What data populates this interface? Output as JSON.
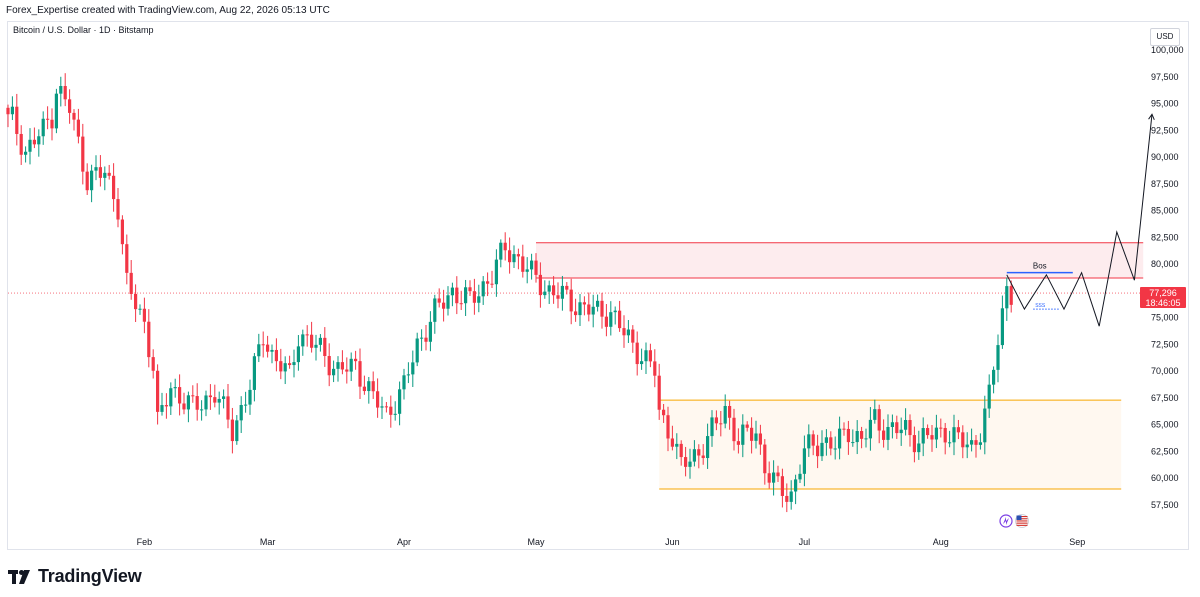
{
  "header": {
    "attribution": "Forex_Expertise created with TradingView.com, Aug 22, 2026 05:13 UTC"
  },
  "symbol": {
    "title": "Bitcoin / U.S. Dollar · 1D · Bitstamp"
  },
  "axis": {
    "currency": "USD"
  },
  "price_label": {
    "price": "77,296",
    "countdown": "18:46:05"
  },
  "annotations": {
    "bos": "Bos",
    "sss": "SSS"
  },
  "footer": {
    "brand": "TradingView"
  },
  "colors": {
    "up": "#089981",
    "down": "#f23645",
    "resistance_zone_fill": "#fdecee",
    "resistance_zone_line": "#f23645",
    "support_zone_fill": "#fff8f0",
    "support_zone_line": "#f7a600",
    "bos_line": "#2962ff",
    "projection": "#131722"
  },
  "chart_data": {
    "type": "candlestick",
    "title": "Bitcoin / U.S. Dollar · 1D · Bitstamp",
    "ylabel": "USD",
    "ylim": [
      56000,
      101200
    ],
    "y_ticks": [
      57500,
      60000,
      62500,
      65000,
      67500,
      70000,
      72500,
      75000,
      77500,
      80000,
      82500,
      85000,
      87500,
      90000,
      92500,
      95000,
      97500,
      100000
    ],
    "y_tick_labels": [
      "57,500",
      "60,000",
      "62,500",
      "65,000",
      "67,500",
      "70,000",
      "72,500",
      "75,000",
      "77,500",
      "80,000",
      "82,500",
      "85,000",
      "87,500",
      "90,000",
      "92,500",
      "95,000",
      "97,500",
      "100,000"
    ],
    "x_tick_labels": [
      "Feb",
      "Mar",
      "Apr",
      "May",
      "Jun",
      "Jul",
      "Aug",
      "Sep"
    ],
    "x_tick_days": [
      31,
      59,
      90,
      120,
      151,
      181,
      212,
      243
    ],
    "last_price": 77296,
    "grid": false,
    "anchors": [
      [
        1,
        93500
      ],
      [
        4,
        90500
      ],
      [
        8,
        92500
      ],
      [
        10,
        94000
      ],
      [
        11,
        96500
      ],
      [
        14,
        94500
      ],
      [
        18,
        88000
      ],
      [
        22,
        88500
      ],
      [
        25,
        85500
      ],
      [
        27,
        78000
      ],
      [
        31,
        74500
      ],
      [
        33,
        70500
      ],
      [
        34,
        65000
      ],
      [
        37,
        68500
      ],
      [
        42,
        66500
      ],
      [
        47,
        68000
      ],
      [
        51,
        64500
      ],
      [
        55,
        68500
      ],
      [
        58,
        73500
      ],
      [
        60,
        71500
      ],
      [
        64,
        69500
      ],
      [
        66,
        73500
      ],
      [
        71,
        72000
      ],
      [
        75,
        70000
      ],
      [
        79,
        70500
      ],
      [
        83,
        67500
      ],
      [
        86,
        66000
      ],
      [
        90,
        68500
      ],
      [
        93,
        72500
      ],
      [
        97,
        75500
      ],
      [
        101,
        77500
      ],
      [
        105,
        76500
      ],
      [
        110,
        79000
      ],
      [
        113,
        81500
      ],
      [
        116,
        80500
      ],
      [
        119,
        79000
      ],
      [
        123,
        77500
      ],
      [
        126,
        77000
      ],
      [
        130,
        76000
      ],
      [
        134,
        75500
      ],
      [
        137,
        75500
      ],
      [
        140,
        73500
      ],
      [
        144,
        71500
      ],
      [
        147,
        70000
      ],
      [
        148,
        66000
      ],
      [
        151,
        64000
      ],
      [
        153,
        61000
      ],
      [
        157,
        62500
      ],
      [
        161,
        65000
      ],
      [
        163,
        66500
      ],
      [
        166,
        63500
      ],
      [
        170,
        64500
      ],
      [
        172,
        61000
      ],
      [
        175,
        59000
      ],
      [
        178,
        58500
      ],
      [
        181,
        62500
      ],
      [
        185,
        63500
      ],
      [
        188,
        63000
      ],
      [
        191,
        64500
      ],
      [
        194,
        63500
      ],
      [
        197,
        65500
      ],
      [
        200,
        64500
      ],
      [
        204,
        64500
      ],
      [
        207,
        63500
      ],
      [
        210,
        64000
      ],
      [
        213,
        64500
      ],
      [
        216,
        63500
      ],
      [
        219,
        63000
      ],
      [
        221,
        64500
      ],
      [
        223,
        67500
      ],
      [
        225,
        73000
      ],
      [
        227,
        78000
      ],
      [
        228,
        77300
      ]
    ],
    "resistance_zone": {
      "from_day": 120,
      "to_day": 258,
      "low": 78700,
      "high": 82000
    },
    "support_zone": {
      "from_day": 148,
      "to_day": 253,
      "low": 59000,
      "high": 67300
    },
    "bos": {
      "from_day": 227,
      "to_day": 242,
      "price": 79200
    },
    "sss_level": {
      "from_day": 233,
      "to_day": 239,
      "price": 75800
    },
    "projection_path": [
      [
        227,
        79000
      ],
      [
        231,
        75800
      ],
      [
        236,
        79000
      ],
      [
        240,
        75800
      ],
      [
        244,
        79200
      ],
      [
        248,
        74200
      ],
      [
        252,
        83000
      ],
      [
        256,
        78500
      ],
      [
        260,
        94000
      ]
    ]
  }
}
